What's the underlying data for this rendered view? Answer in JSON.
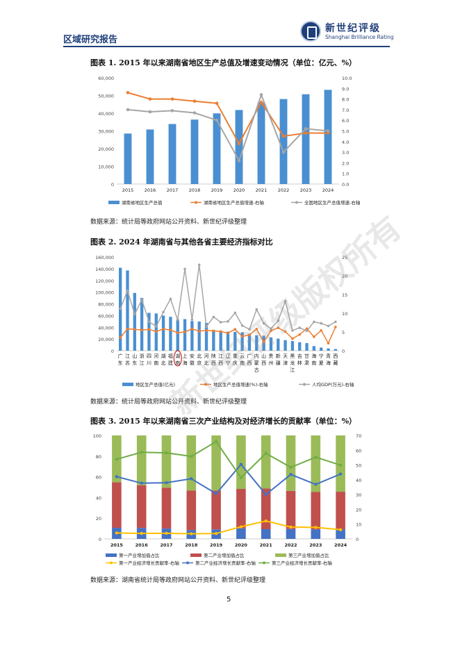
{
  "header": {
    "section_title": "区域研究报告",
    "logo_cn": "新世纪评级",
    "logo_en": "Shanghai Brilliance Rating"
  },
  "fig1": {
    "title": "图表 1.  2015 年以来湖南省地区生产总值及增速变动情况（单位：亿元、%）",
    "source": "数据来源：统计局等政府网站公开资料、新世纪评级整理",
    "chart_data": {
      "type": "bar+line",
      "categories": [
        "2015",
        "2016",
        "2017",
        "2018",
        "2019",
        "2020",
        "2021",
        "2022",
        "2023",
        "2024"
      ],
      "series": [
        {
          "name": "湖南省地区生产总值",
          "type": "bar",
          "axis": "left",
          "color": "#4a8fd1",
          "values": [
            28500,
            30800,
            33900,
            36400,
            39900,
            41800,
            46000,
            48000,
            50700,
            53200
          ]
        },
        {
          "name": "湖南省地区生产总值增速-右轴",
          "type": "line",
          "axis": "right",
          "color": "#ed7d31",
          "values": [
            8.6,
            8.0,
            8.0,
            7.8,
            7.6,
            3.8,
            7.7,
            4.5,
            4.8,
            4.8
          ]
        },
        {
          "name": "全国地区生产总值增速-右轴",
          "type": "line",
          "axis": "right",
          "color": "#a5a5a5",
          "values": [
            7.0,
            6.8,
            6.9,
            6.7,
            6.0,
            2.2,
            8.4,
            3.0,
            5.2,
            5.0
          ]
        }
      ],
      "y_left_ticks": [
        "0",
        "10,000",
        "20,000",
        "30,000",
        "40,000",
        "50,000",
        "60,000"
      ],
      "y_right_ticks": [
        "0.0",
        "1.0",
        "2.0",
        "3.0",
        "4.0",
        "5.0",
        "6.0",
        "7.0",
        "8.0",
        "9.0",
        "10.0"
      ],
      "ylim_left": [
        0,
        60000
      ],
      "ylim_right": [
        0,
        10
      ],
      "legend": "bottom"
    }
  },
  "fig2": {
    "title": "图表 2.  2024 年湖南省与其他各省主要经济指标对比",
    "source": "数据来源：统计局等政府网站公开资料、新世纪评级整理",
    "chart_data": {
      "type": "bar+line",
      "categories": [
        "广东",
        "江苏",
        "山东",
        "浙江",
        "四川",
        "河南",
        "湖北",
        "福建",
        "湖南",
        "上海",
        "安徽",
        "北京",
        "河北",
        "陕西",
        "江西",
        "辽宁",
        "重庆",
        "云南",
        "广西",
        "内蒙古",
        "山西",
        "贵州",
        "新疆",
        "天津",
        "黑龙江",
        "吉林",
        "甘肃",
        "海南",
        "宁夏",
        "青海",
        "西藏"
      ],
      "series": [
        {
          "name": "地区生产总值(亿元)",
          "type": "bar",
          "axis": "left",
          "color": "#4a8fd1",
          "values": [
            141600,
            137000,
            98600,
            90100,
            64700,
            63600,
            60000,
            57800,
            53200,
            53900,
            50600,
            49800,
            47500,
            35500,
            34200,
            32600,
            32200,
            31500,
            28600,
            26300,
            25500,
            22700,
            20500,
            18000,
            16500,
            14400,
            13000,
            7900,
            5300,
            3900,
            2800
          ]
        },
        {
          "name": "地区生产总值增速(%)-右轴",
          "type": "line",
          "axis": "right",
          "color": "#ed7d31",
          "values": [
            3.5,
            5.8,
            5.7,
            5.5,
            5.7,
            5.1,
            5.8,
            5.5,
            4.8,
            5.0,
            5.8,
            5.2,
            5.4,
            5.3,
            5.1,
            4.7,
            5.7,
            3.8,
            4.2,
            5.8,
            2.3,
            5.3,
            6.1,
            5.1,
            3.2,
            4.3,
            5.9,
            3.7,
            5.4,
            2.0,
            6.3
          ]
        },
        {
          "name": "人均GDP(万元)-右轴",
          "type": "line",
          "axis": "right",
          "color": "#a5a5a5",
          "values": [
            11.2,
            16.0,
            9.7,
            13.6,
            7.7,
            6.5,
            10.3,
            13.8,
            8.2,
            21.8,
            8.3,
            22.9,
            6.4,
            9.0,
            7.6,
            7.8,
            10.1,
            6.7,
            5.7,
            11.0,
            7.3,
            5.9,
            8.0,
            13.2,
            5.4,
            6.1,
            5.3,
            7.7,
            7.3,
            6.6,
            7.7
          ]
        }
      ],
      "y_left_ticks": [
        "0",
        "20,000",
        "40,000",
        "60,000",
        "80,000",
        "100,000",
        "120,000",
        "140,000",
        "160,000"
      ],
      "y_right_ticks": [
        "0",
        "5",
        "10",
        "15",
        "20",
        "25"
      ],
      "ylim_left": [
        0,
        160000
      ],
      "ylim_right": [
        0,
        25
      ],
      "highlight_category": "湖南",
      "legend": "bottom"
    }
  },
  "fig3": {
    "title": "图表 3.  2015 年以来湖南省三次产业结构及对经济增长的贡献率（单位：%）",
    "source": "数据来源：湖南省统计局等政府网站公开资料、新世纪评级整理",
    "chart_data": {
      "type": "stacked bar+line",
      "categories": [
        "2015",
        "2016",
        "2017",
        "2018",
        "2019",
        "2020",
        "2021",
        "2022",
        "2023",
        "2024"
      ],
      "series": [
        {
          "name": "第一产业增加值占比",
          "type": "bar",
          "axis": "left",
          "color": "#4472c4",
          "values": [
            10.7,
            10.6,
            10.0,
            8.5,
            9.2,
            10.2,
            9.4,
            9.5,
            9.2,
            9.3
          ]
        },
        {
          "name": "第二产业增加值占比",
          "type": "bar",
          "axis": "left",
          "color": "#c0504d",
          "values": [
            44.1,
            41.3,
            39.5,
            38.3,
            37.6,
            38.1,
            39.3,
            36.9,
            36.1,
            36.3
          ]
        },
        {
          "name": "第三产业增加值占比",
          "type": "bar",
          "axis": "left",
          "color": "#9bbb59",
          "values": [
            45.2,
            48.1,
            50.5,
            53.2,
            53.2,
            51.7,
            51.3,
            53.6,
            54.7,
            54.4
          ]
        },
        {
          "name": "第一产业经济增长贡献率-右轴",
          "type": "line",
          "axis": "right",
          "color": "#ffc000",
          "values": [
            4.0,
            3.7,
            3.8,
            3.5,
            3.6,
            8.2,
            12.1,
            8.0,
            7.8,
            6.2
          ]
        },
        {
          "name": "第二产业经济增长贡献率-右轴",
          "type": "line",
          "axis": "right",
          "color": "#4472c4",
          "values": [
            42.1,
            37.7,
            38.0,
            40.7,
            30.6,
            50.4,
            30.0,
            43.6,
            36.9,
            43.9
          ]
        },
        {
          "name": "第三产业经济增长贡献率-右轴",
          "type": "line",
          "axis": "right",
          "color": "#70ad47",
          "values": [
            53.9,
            58.6,
            58.2,
            55.8,
            65.8,
            41.4,
            57.9,
            48.4,
            55.3,
            49.9
          ]
        }
      ],
      "y_left_ticks": [
        "0",
        "20",
        "40",
        "60",
        "80",
        "100"
      ],
      "y_right_ticks": [
        "0",
        "10",
        "20",
        "30",
        "40",
        "50",
        "60",
        "70"
      ],
      "ylim_left": [
        0,
        100
      ],
      "ylim_right": [
        0,
        70
      ],
      "legend": "bottom"
    }
  },
  "page_number": "5",
  "watermark": "新世纪评级版权所有"
}
